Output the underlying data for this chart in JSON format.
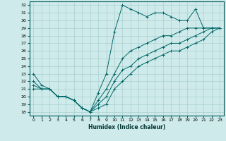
{
  "title": "",
  "xlabel": "Humidex (Indice chaleur)",
  "ylabel": "",
  "bg_color": "#ceeaea",
  "line_color": "#006666",
  "grid_color": "#aad0d0",
  "ylim": [
    17.5,
    32.5
  ],
  "xlim": [
    -0.5,
    23.5
  ],
  "yticks": [
    18,
    19,
    20,
    21,
    22,
    23,
    24,
    25,
    26,
    27,
    28,
    29,
    30,
    31,
    32
  ],
  "xticks": [
    0,
    1,
    2,
    3,
    4,
    5,
    6,
    7,
    8,
    9,
    10,
    11,
    12,
    13,
    14,
    15,
    16,
    17,
    18,
    19,
    20,
    21,
    22,
    23
  ],
  "series": [
    {
      "x": [
        0,
        1,
        2,
        3,
        4,
        5,
        6,
        7,
        8,
        9,
        10,
        11,
        12,
        13,
        14,
        15,
        16,
        17,
        18,
        19,
        20,
        21,
        22,
        23
      ],
      "y": [
        23,
        21.5,
        21,
        20,
        20,
        19.5,
        18.5,
        18,
        20.5,
        23,
        28.5,
        32,
        31.5,
        31,
        30.5,
        31,
        31,
        30.5,
        30,
        30,
        31.5,
        29,
        29,
        29
      ]
    },
    {
      "x": [
        0,
        1,
        2,
        3,
        4,
        5,
        6,
        7,
        8,
        9,
        10,
        11,
        12,
        13,
        14,
        15,
        16,
        17,
        18,
        19,
        20,
        21,
        22,
        23
      ],
      "y": [
        22,
        21,
        21,
        20,
        20,
        19.5,
        18.5,
        18,
        19.5,
        21,
        23,
        25,
        26,
        26.5,
        27,
        27.5,
        28,
        28,
        28.5,
        29,
        29,
        29,
        29,
        29
      ]
    },
    {
      "x": [
        0,
        1,
        2,
        3,
        4,
        5,
        6,
        7,
        8,
        9,
        10,
        11,
        12,
        13,
        14,
        15,
        16,
        17,
        18,
        19,
        20,
        21,
        22,
        23
      ],
      "y": [
        21.5,
        21,
        21,
        20,
        20,
        19.5,
        18.5,
        18,
        19,
        20,
        22,
        23.5,
        24,
        25,
        25.5,
        26,
        26.5,
        27,
        27,
        27.5,
        28,
        28.5,
        29,
        29
      ]
    },
    {
      "x": [
        0,
        1,
        2,
        3,
        4,
        5,
        6,
        7,
        8,
        9,
        10,
        11,
        12,
        13,
        14,
        15,
        16,
        17,
        18,
        19,
        20,
        21,
        22,
        23
      ],
      "y": [
        21,
        21,
        21,
        20,
        20,
        19.5,
        18.5,
        18,
        18.5,
        19,
        21,
        22,
        23,
        24,
        24.5,
        25,
        25.5,
        26,
        26,
        26.5,
        27,
        27.5,
        28.5,
        29
      ]
    }
  ]
}
